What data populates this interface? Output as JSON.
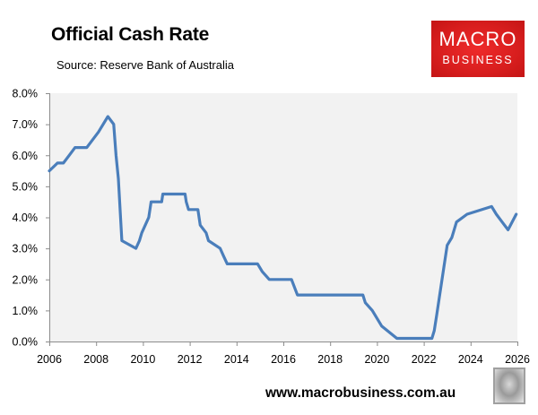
{
  "header": {
    "title": "Official Cash Rate",
    "subtitle": "Source: Reserve Bank of Australia"
  },
  "logo": {
    "line1": "MACRO",
    "line2": "BUSINESS",
    "color": "#d81e1e"
  },
  "footer": {
    "url": "www.macrobusiness.com.au",
    "mascot_icon": "wolf-icon"
  },
  "colors": {
    "line": "#4a7ebb",
    "plot_bg": "#f2f2f2",
    "axis": "#8c8c8c"
  },
  "chart_data": {
    "type": "line",
    "title": "Official Cash Rate",
    "subtitle": "Source: Reserve Bank of Australia",
    "xlabel": "",
    "ylabel": "",
    "xlim": [
      2006,
      2026
    ],
    "ylim": [
      0,
      8
    ],
    "x_ticks": [
      "2006",
      "2008",
      "2010",
      "2012",
      "2014",
      "2016",
      "2018",
      "2020",
      "2022",
      "2024",
      "2026"
    ],
    "y_ticks": [
      "0.0%",
      "1.0%",
      "2.0%",
      "3.0%",
      "4.0%",
      "5.0%",
      "6.0%",
      "7.0%",
      "8.0%"
    ],
    "grid": false,
    "legend": null,
    "series": [
      {
        "name": "Official Cash Rate (%)",
        "x": [
          2006.0,
          2006.35,
          2006.6,
          2006.85,
          2007.1,
          2007.6,
          2007.85,
          2008.1,
          2008.5,
          2008.75,
          2008.85,
          2008.95,
          2009.1,
          2009.7,
          2009.85,
          2009.95,
          2010.1,
          2010.25,
          2010.35,
          2010.8,
          2010.85,
          2011.8,
          2011.85,
          2011.95,
          2012.35,
          2012.45,
          2012.7,
          2012.8,
          2013.3,
          2013.45,
          2013.6,
          2014.9,
          2015.1,
          2015.4,
          2016.35,
          2016.6,
          2019.4,
          2019.5,
          2019.8,
          2020.2,
          2020.85,
          2022.35,
          2022.45,
          2022.55,
          2022.65,
          2022.75,
          2022.85,
          2023.0,
          2023.2,
          2023.4,
          2023.85,
          2024.9,
          2025.1,
          2025.35,
          2025.6,
          2025.95
        ],
        "y": [
          5.5,
          5.75,
          5.75,
          6.0,
          6.25,
          6.25,
          6.5,
          6.75,
          7.25,
          7.0,
          6.0,
          5.25,
          3.25,
          3.0,
          3.25,
          3.5,
          3.75,
          4.0,
          4.5,
          4.5,
          4.75,
          4.75,
          4.5,
          4.25,
          4.25,
          3.75,
          3.5,
          3.25,
          3.0,
          2.75,
          2.5,
          2.5,
          2.25,
          2.0,
          2.0,
          1.5,
          1.5,
          1.25,
          1.0,
          0.5,
          0.1,
          0.1,
          0.35,
          0.85,
          1.35,
          1.85,
          2.35,
          3.1,
          3.35,
          3.85,
          4.1,
          4.35,
          4.1,
          3.85,
          3.6,
          4.1
        ]
      }
    ]
  }
}
